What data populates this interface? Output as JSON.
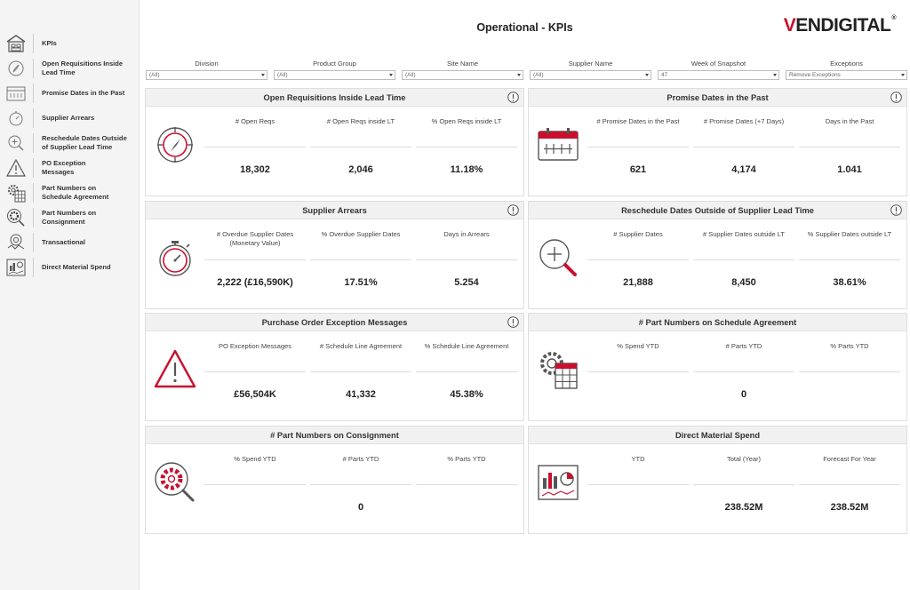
{
  "sidebar": {
    "items": [
      {
        "label": "KPIs",
        "icon": "warehouse-icon"
      },
      {
        "label": "Open Requisitions Inside\nLead Time",
        "icon": "compass-icon"
      },
      {
        "label": "Promise Dates in the Past",
        "icon": "calendar-icon"
      },
      {
        "label": "Supplier Arrears",
        "icon": "stopwatch-icon"
      },
      {
        "label": "Reschedule Dates Outside\nof Supplier Lead Time",
        "icon": "magnifier-plus-icon"
      },
      {
        "label": "PO Exception\nMessages",
        "icon": "warning-icon"
      },
      {
        "label": "Part Numbers on\nSchedule Agreement",
        "icon": "gear-calculator-icon"
      },
      {
        "label": "Part Numbers on\nConsignment",
        "icon": "gear-search-icon"
      },
      {
        "label": "Transactional",
        "icon": "transaction-icon"
      },
      {
        "label": "Direct Material Spend",
        "icon": "chart-report-icon"
      }
    ]
  },
  "header": {
    "title": "Operational - KPIs",
    "logo": "VENDIGITAL"
  },
  "filters": [
    {
      "label": "Division",
      "value": "(All)"
    },
    {
      "label": "Product Group",
      "value": "(All)"
    },
    {
      "label": "Site Name",
      "value": "(All)"
    },
    {
      "label": "Supplier Name",
      "value": "(All)"
    },
    {
      "label": "Week of Snapshot",
      "value": "47"
    },
    {
      "label": "Exceptions",
      "value": "Remove Exceptions"
    }
  ],
  "cards": {
    "open_reqs": {
      "title": "Open Requisitions Inside Lead Time",
      "metrics": [
        {
          "label": "# Open Reqs",
          "value": "18,302"
        },
        {
          "label": "# Open Reqs inside LT",
          "value": "2,046"
        },
        {
          "label": "% Open Reqs inside LT",
          "value": "11.18%"
        }
      ]
    },
    "promise_dates": {
      "title": "Promise Dates in the Past",
      "metrics": [
        {
          "label": "# Promise Dates in the Past",
          "value": "621"
        },
        {
          "label": "# Promise Dates (+7 Days)",
          "value": "4,174"
        },
        {
          "label": "Days in the Past",
          "value": "1.041"
        }
      ]
    },
    "supplier_arrears": {
      "title": "Supplier Arrears",
      "metrics": [
        {
          "label": "# Overdue Supplier Dates\n(Monetary Value)",
          "value": "2,222 (£16,590K)"
        },
        {
          "label": "% Overdue Supplier Dates",
          "value": "17.51%"
        },
        {
          "label": "Days in Arrears",
          "value": "5.254"
        }
      ]
    },
    "reschedule": {
      "title": "Reschedule Dates Outside of Supplier Lead Time",
      "metrics": [
        {
          "label": "# Supplier Dates",
          "value": "21,888"
        },
        {
          "label": "# Supplier Dates outside LT",
          "value": "8,450"
        },
        {
          "label": "% Supplier Dates outside LT",
          "value": "38.61%"
        }
      ]
    },
    "po_exception": {
      "title": "Purchase Order Exception Messages",
      "metrics": [
        {
          "label": "PO Exception Messages",
          "value": "£56,504K"
        },
        {
          "label": "# Schedule Line Agreement",
          "value": "41,332"
        },
        {
          "label": "% Schedule Line Agreement",
          "value": "45.38%"
        }
      ]
    },
    "schedule_agreement": {
      "title": "# Part Numbers on Schedule Agreement",
      "metrics": [
        {
          "label": "% Spend YTD",
          "value": ""
        },
        {
          "label": "# Parts YTD",
          "value": "0"
        },
        {
          "label": "% Parts YTD",
          "value": ""
        }
      ]
    },
    "consignment": {
      "title": "# Part Numbers on Consignment",
      "metrics": [
        {
          "label": "% Spend YTD",
          "value": ""
        },
        {
          "label": "# Parts YTD",
          "value": "0"
        },
        {
          "label": "% Parts YTD",
          "value": ""
        }
      ]
    },
    "direct_spend": {
      "title": "Direct Material Spend",
      "metrics": [
        {
          "label": "YTD",
          "value": ""
        },
        {
          "label": "Total (Year)",
          "value": "238.52M"
        },
        {
          "label": "Forecast  For Year",
          "value": "238.52M"
        }
      ]
    }
  },
  "colors": {
    "accent_red": "#c8102e",
    "icon_gray": "#555555"
  }
}
